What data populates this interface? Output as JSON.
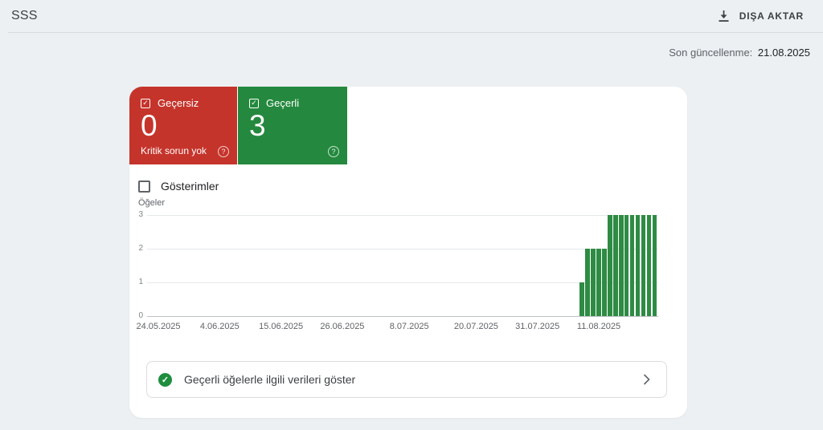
{
  "header": {
    "title": "SSS",
    "export_label": "DIŞA AKTAR"
  },
  "meta": {
    "last_updated_label": "Son güncellenme:",
    "last_updated_date": "21.08.2025"
  },
  "summary_cards": [
    {
      "id": "invalid",
      "label": "Geçersiz",
      "count": "0",
      "subtitle": "Kritik sorun yok",
      "color": "#C5342B"
    },
    {
      "id": "valid",
      "label": "Geçerli",
      "count": "3",
      "subtitle": "",
      "color": "#24893E"
    }
  ],
  "filters": {
    "impressions_label": "Gösterimler",
    "impressions_checked": false
  },
  "chart_data": {
    "type": "bar",
    "title": "",
    "xlabel": "",
    "ylabel": "Öğeler",
    "ylim": [
      0,
      3
    ],
    "yticks": [
      0,
      1,
      2,
      3
    ],
    "grid": "horizontal",
    "bar_color": "#2E8B43",
    "x_ticks": [
      {
        "label": "24.05.2025",
        "day": 0
      },
      {
        "label": "4.06.2025",
        "day": 11
      },
      {
        "label": "15.06.2025",
        "day": 22
      },
      {
        "label": "26.06.2025",
        "day": 33
      },
      {
        "label": "8.07.2025",
        "day": 45
      },
      {
        "label": "20.07.2025",
        "day": 57
      },
      {
        "label": "31.07.2025",
        "day": 68
      },
      {
        "label": "11.08.2025",
        "day": 79
      }
    ],
    "series": [
      {
        "name": "Geçerli",
        "points": [
          {
            "date": "08.08.2025",
            "day": 76,
            "value": 1
          },
          {
            "date": "09.08.2025",
            "day": 77,
            "value": 2
          },
          {
            "date": "10.08.2025",
            "day": 78,
            "value": 2
          },
          {
            "date": "11.08.2025",
            "day": 79,
            "value": 2
          },
          {
            "date": "12.08.2025",
            "day": 80,
            "value": 2
          },
          {
            "date": "13.08.2025",
            "day": 81,
            "value": 3
          },
          {
            "date": "14.08.2025",
            "day": 82,
            "value": 3
          },
          {
            "date": "15.08.2025",
            "day": 83,
            "value": 3
          },
          {
            "date": "16.08.2025",
            "day": 84,
            "value": 3
          },
          {
            "date": "17.08.2025",
            "day": 85,
            "value": 3
          },
          {
            "date": "18.08.2025",
            "day": 86,
            "value": 3
          },
          {
            "date": "19.08.2025",
            "day": 87,
            "value": 3
          },
          {
            "date": "20.08.2025",
            "day": 88,
            "value": 3
          },
          {
            "date": "21.08.2025",
            "day": 89,
            "value": 3
          }
        ]
      }
    ]
  },
  "footer_row": {
    "label": "Geçerli öğelerle ilgili verileri göster"
  }
}
